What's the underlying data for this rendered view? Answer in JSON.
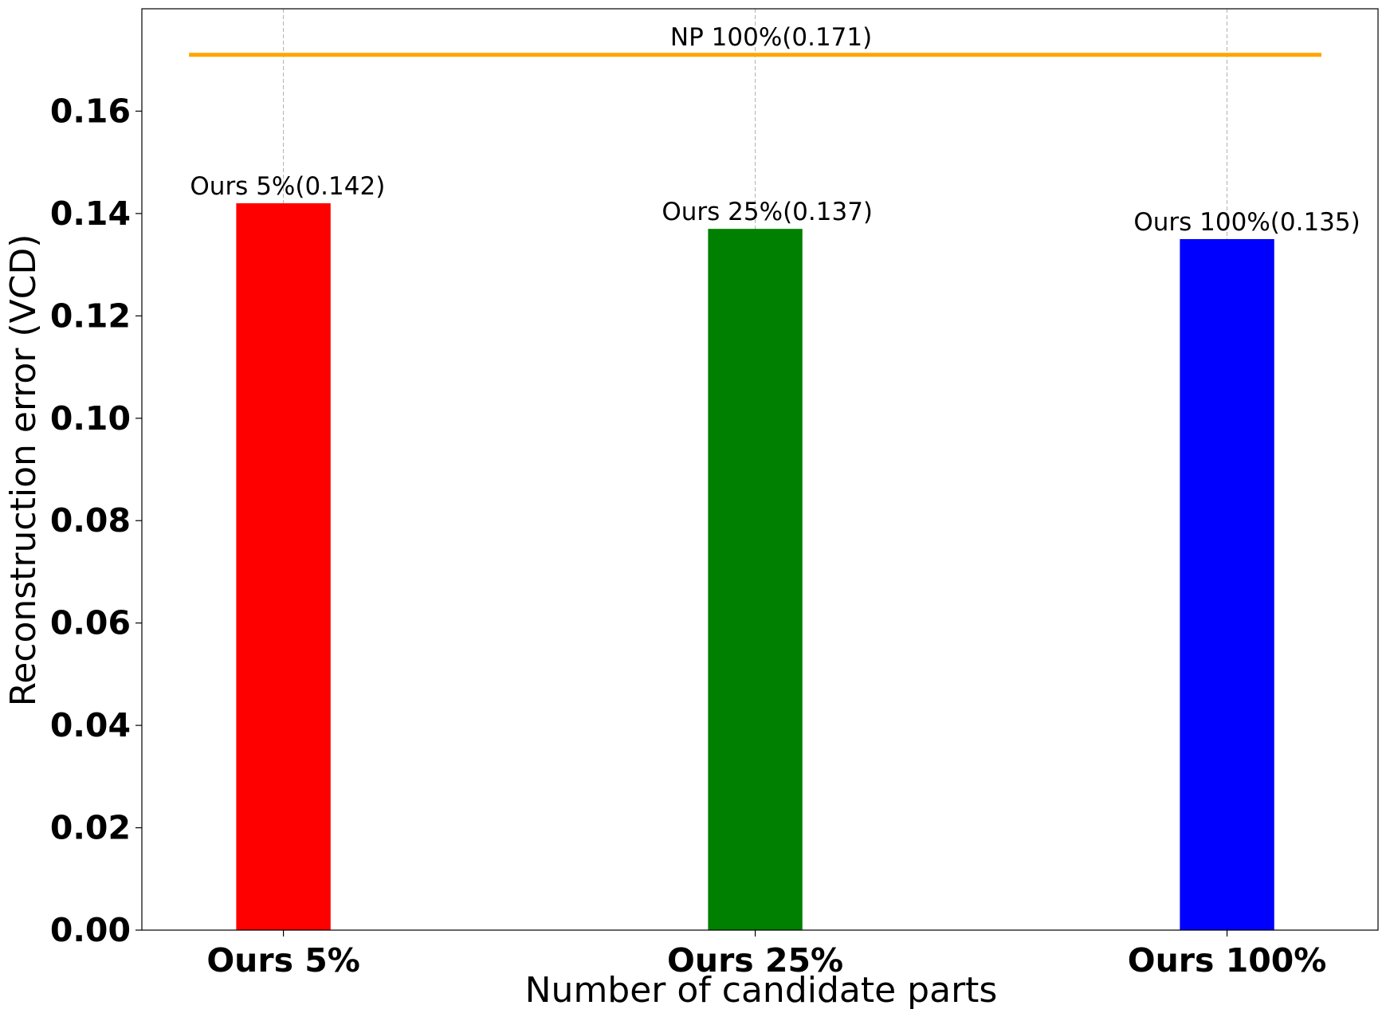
{
  "chart_data": {
    "type": "bar",
    "xlabel": "Number of candidate parts",
    "ylabel": "Reconstruction error (VCD)",
    "categories": [
      "Ours 5%",
      "Ours 25%",
      "Ours 100%"
    ],
    "values": [
      0.142,
      0.137,
      0.135
    ],
    "bar_labels": [
      "Ours 5%(0.142)",
      "Ours 25%(0.137)",
      "Ours 100%(0.135)"
    ],
    "bar_colors": [
      "#ff0000",
      "#008000",
      "#0000ff"
    ],
    "reference_line": {
      "value": 0.171,
      "label": "NP 100%(0.171)",
      "color": "#ffa500"
    },
    "ylim": [
      0,
      0.18
    ],
    "yticks": [
      0.0,
      0.02,
      0.04,
      0.06,
      0.08,
      0.1,
      0.12,
      0.14,
      0.16
    ],
    "ytick_labels": [
      "0.00",
      "0.02",
      "0.04",
      "0.06",
      "0.08",
      "0.10",
      "0.12",
      "0.14",
      "0.16"
    ],
    "grid": "x-axis dashed"
  }
}
